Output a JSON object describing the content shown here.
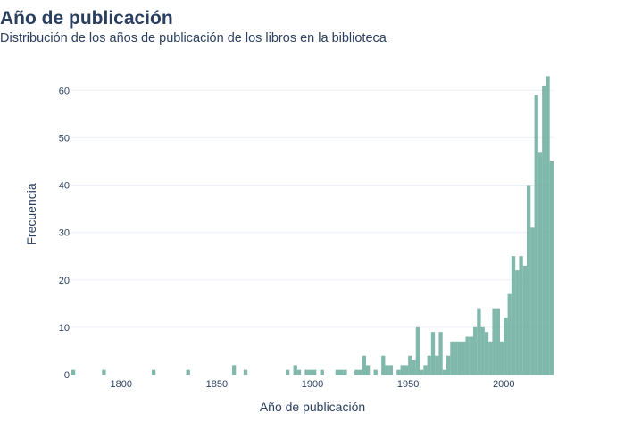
{
  "chart_data": {
    "type": "bar",
    "title": "Año de publicación",
    "subtitle": "Distribución de los años de publicación de los libros en la biblioteca",
    "xlabel": "Año de publicación",
    "ylabel": "Frecuencia",
    "xlim": [
      1774,
      2026
    ],
    "ylim": [
      0,
      64
    ],
    "bin_width": 2,
    "xticks": [
      1800,
      1850,
      1900,
      1950,
      2000
    ],
    "yticks": [
      0,
      10,
      20,
      30,
      40,
      50,
      60
    ],
    "grid": true,
    "bar_color": "#6aab9c",
    "bins": [
      [
        1774,
        1
      ],
      [
        1790,
        1
      ],
      [
        1816,
        1
      ],
      [
        1834,
        1
      ],
      [
        1858,
        2
      ],
      [
        1864,
        1
      ],
      [
        1886,
        1
      ],
      [
        1890,
        2
      ],
      [
        1892,
        1
      ],
      [
        1896,
        1
      ],
      [
        1898,
        1
      ],
      [
        1900,
        1
      ],
      [
        1904,
        1
      ],
      [
        1912,
        1
      ],
      [
        1914,
        1
      ],
      [
        1916,
        1
      ],
      [
        1922,
        1
      ],
      [
        1924,
        1
      ],
      [
        1926,
        4
      ],
      [
        1928,
        2
      ],
      [
        1932,
        1
      ],
      [
        1936,
        4
      ],
      [
        1938,
        2
      ],
      [
        1940,
        2
      ],
      [
        1944,
        1
      ],
      [
        1946,
        2
      ],
      [
        1948,
        2
      ],
      [
        1950,
        4
      ],
      [
        1952,
        3
      ],
      [
        1954,
        10
      ],
      [
        1956,
        1
      ],
      [
        1958,
        2
      ],
      [
        1960,
        4
      ],
      [
        1962,
        9
      ],
      [
        1964,
        4
      ],
      [
        1966,
        9
      ],
      [
        1968,
        1
      ],
      [
        1970,
        4
      ],
      [
        1972,
        7
      ],
      [
        1974,
        7
      ],
      [
        1976,
        7
      ],
      [
        1978,
        7
      ],
      [
        1980,
        8
      ],
      [
        1982,
        8
      ],
      [
        1984,
        10
      ],
      [
        1986,
        14
      ],
      [
        1988,
        10
      ],
      [
        1990,
        9
      ],
      [
        1992,
        7
      ],
      [
        1994,
        14
      ],
      [
        1996,
        14
      ],
      [
        1998,
        7
      ],
      [
        2000,
        12
      ],
      [
        2002,
        17
      ],
      [
        2004,
        25
      ],
      [
        2006,
        22
      ],
      [
        2008,
        25
      ],
      [
        2010,
        23
      ],
      [
        2012,
        40
      ],
      [
        2014,
        31
      ],
      [
        2016,
        59
      ],
      [
        2018,
        47
      ],
      [
        2020,
        61
      ],
      [
        2022,
        63
      ],
      [
        2024,
        45
      ]
    ]
  }
}
